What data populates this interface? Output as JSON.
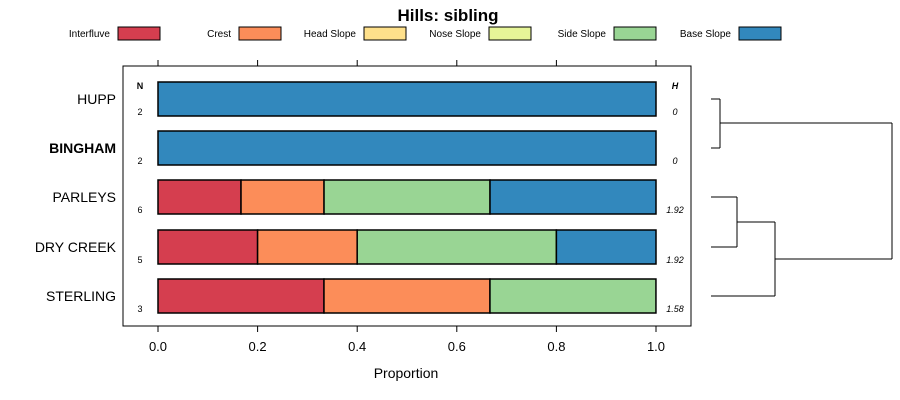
{
  "chart_data": {
    "type": "bar",
    "orientation": "horizontal-stacked",
    "title": "Hills: sibling",
    "xlabel": "Proportion",
    "xlim": [
      0,
      1
    ],
    "x_ticks": [
      "0.0",
      "0.2",
      "0.4",
      "0.6",
      "0.8",
      "1.0"
    ],
    "n_header": "N",
    "h_header": "H",
    "legend_position": "top",
    "series": [
      {
        "name": "Interfluve",
        "color": "#D53E4F"
      },
      {
        "name": "Crest",
        "color": "#FC8D59"
      },
      {
        "name": "Head Slope",
        "color": "#FEE08B"
      },
      {
        "name": "Nose Slope",
        "color": "#E6F598"
      },
      {
        "name": "Side Slope",
        "color": "#99D594"
      },
      {
        "name": "Base Slope",
        "color": "#3288BD"
      }
    ],
    "rows": [
      {
        "label": "HUPP",
        "bold": false,
        "n": "2",
        "h": "0",
        "values": [
          0,
          0,
          0,
          0,
          0,
          1.0
        ]
      },
      {
        "label": "BINGHAM",
        "bold": true,
        "n": "2",
        "h": "0",
        "values": [
          0,
          0,
          0,
          0,
          0,
          1.0
        ]
      },
      {
        "label": "PARLEYS",
        "bold": false,
        "n": "6",
        "h": "1.92",
        "values": [
          0.1667,
          0.1667,
          0,
          0,
          0.3333,
          0.3333
        ]
      },
      {
        "label": "DRY CREEK",
        "bold": false,
        "n": "5",
        "h": "1.92",
        "values": [
          0.2,
          0.2,
          0,
          0,
          0.4,
          0.2
        ]
      },
      {
        "label": "STERLING",
        "bold": false,
        "n": "3",
        "h": "1.58",
        "values": [
          0.3333,
          0.3333,
          0,
          0,
          0.3333,
          0
        ]
      }
    ],
    "dendrogram": {
      "type": "hierarchical-clustering",
      "merges": [
        [
          "HUPP",
          "BINGHAM"
        ],
        [
          "PARLEYS",
          "DRY CREEK"
        ],
        [
          "PARLEYS+DRY CREEK",
          "STERLING"
        ],
        [
          "HUPP+BINGHAM",
          "PARLEYS+DRY CREEK+STERLING"
        ]
      ]
    }
  }
}
